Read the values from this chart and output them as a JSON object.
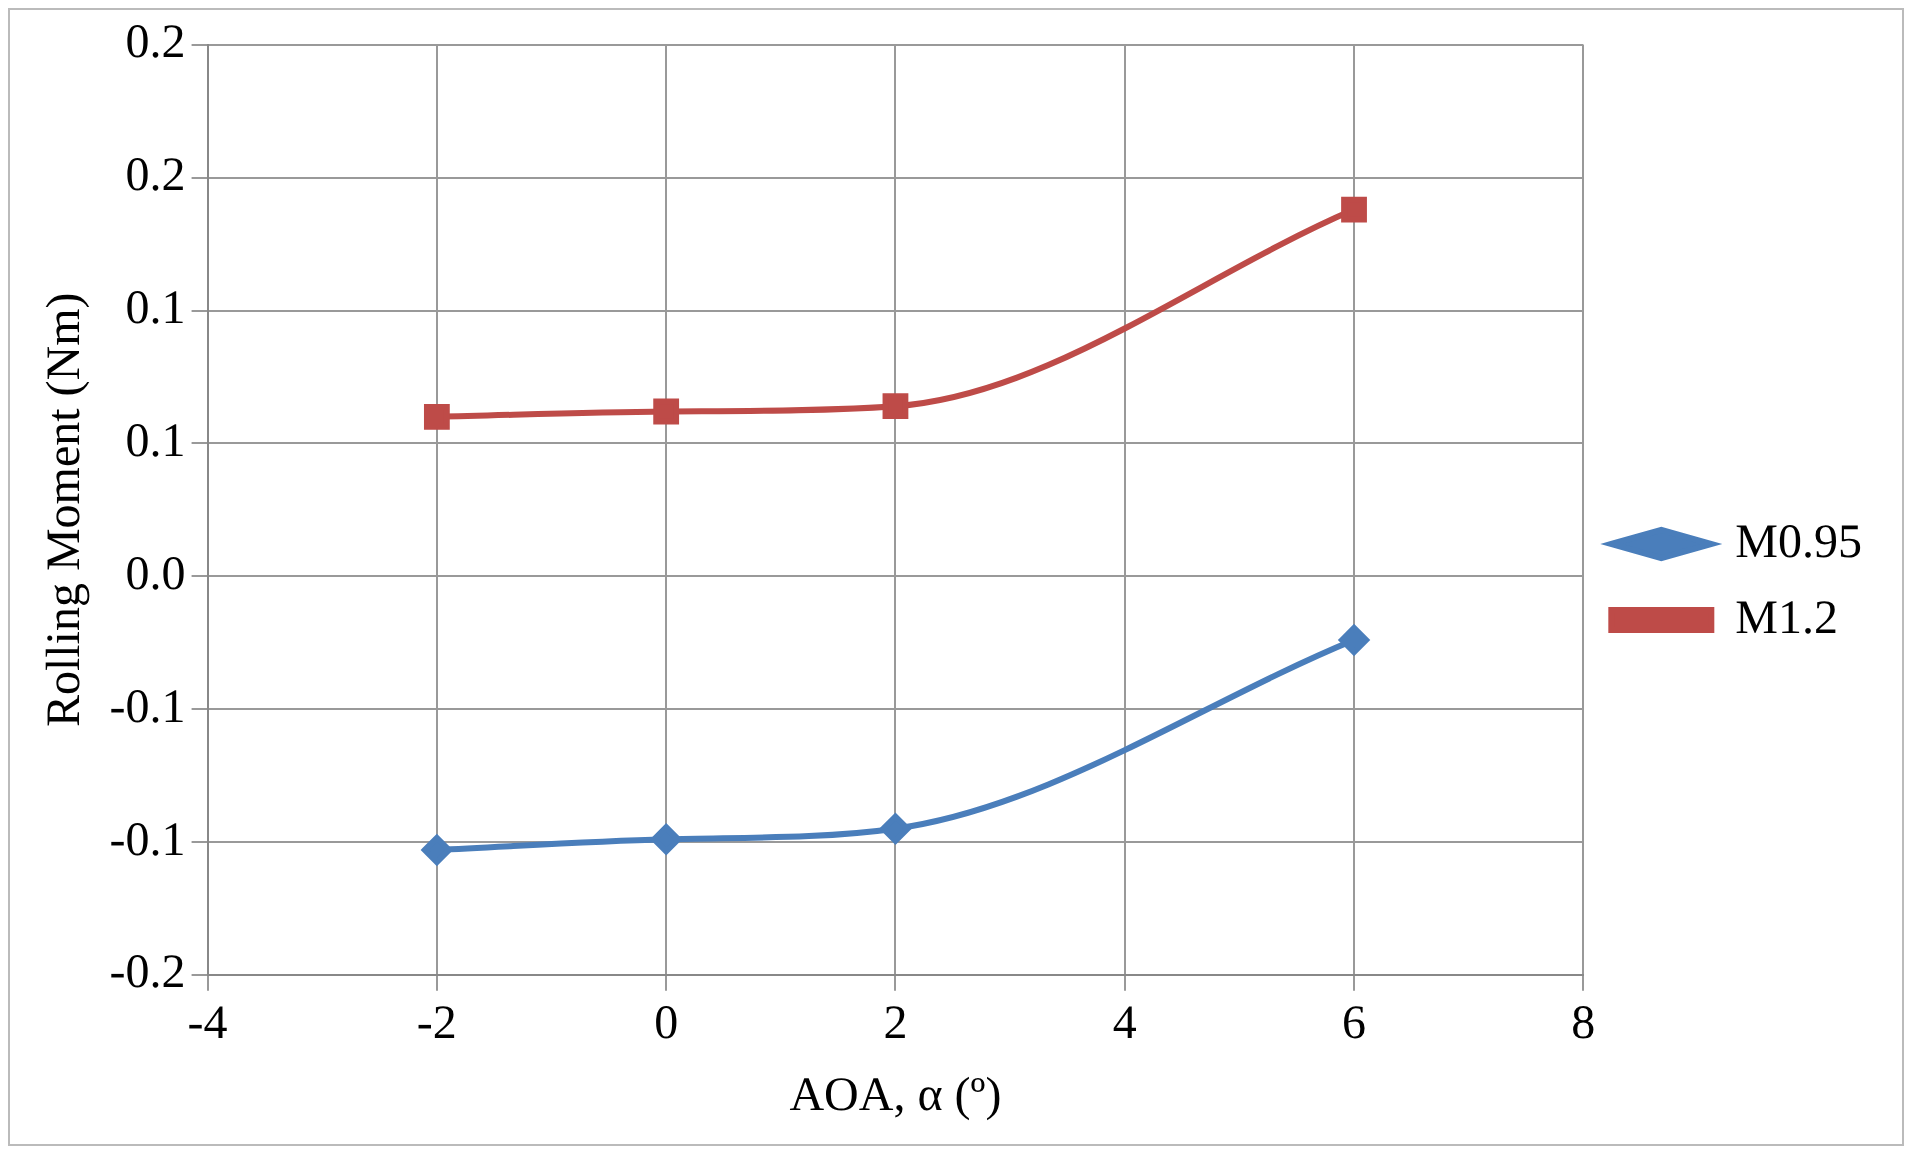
{
  "chart_data": {
    "type": "line",
    "xlabel": "AOA, α (º)",
    "ylabel": "Rolling Moment (Nm)",
    "x": [
      -2,
      0,
      2,
      6
    ],
    "series": [
      {
        "name": "M0.95",
        "color": "#4a7ebb",
        "marker": "diamond",
        "values": [
          -0.103,
          -0.099,
          -0.095,
          -0.024
        ]
      },
      {
        "name": "M1.2",
        "color": "#be4b48",
        "marker": "square",
        "values": [
          0.06,
          0.062,
          0.064,
          0.138
        ]
      }
    ],
    "xlim": [
      -4,
      8
    ],
    "xticks": [
      -4,
      -2,
      0,
      2,
      4,
      6,
      8
    ],
    "ylim": [
      -0.15,
      0.2
    ],
    "yticks": [
      {
        "value": -0.15,
        "label": "-0.2"
      },
      {
        "value": -0.1,
        "label": "-0.1"
      },
      {
        "value": -0.05,
        "label": "-0.1"
      },
      {
        "value": 0,
        "label": "0.0"
      },
      {
        "value": 0.05,
        "label": "0.1"
      },
      {
        "value": 0.1,
        "label": "0.1"
      },
      {
        "value": 0.15,
        "label": "0.2"
      },
      {
        "value": 0.2,
        "label": "0.2"
      }
    ],
    "grid": true,
    "legend": "right",
    "line_style": "solid"
  }
}
